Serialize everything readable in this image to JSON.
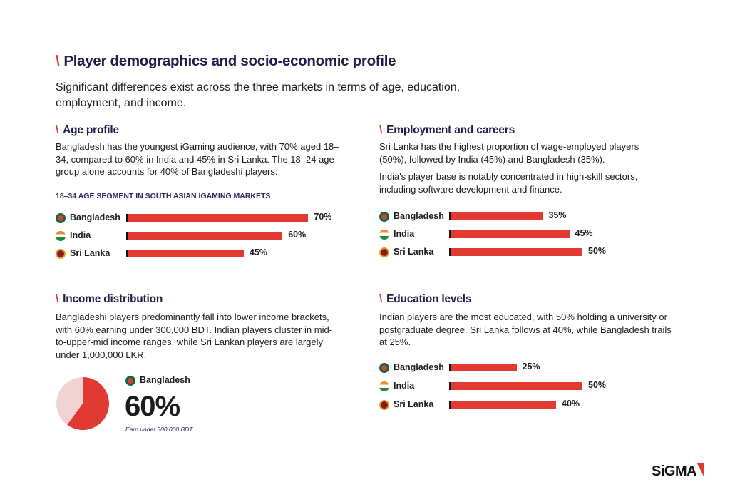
{
  "title": "Player demographics and socio-economic profile",
  "intro": "Significant differences exist across the three markets in terms of age, education, employment, and income.",
  "slash": "\\",
  "colors": {
    "accent": "#e03a33",
    "heading": "#1f1d4a",
    "pie_light": "#f2d3d4"
  },
  "age": {
    "heading": "Age profile",
    "text": "Bangladesh has the youngest iGaming audience, with 70% aged 18–34, compared to 60% in India and 45% in Sri Lanka. The 18–24 age group alone accounts for 40% of Bangladeshi players."
  },
  "employment": {
    "heading": "Employment and careers",
    "text1": "Sri Lanka has the highest proportion of wage-employed players (50%), followed by India (45%) and Bangladesh (35%).",
    "text2": "India's player base is notably concentrated in high-skill sectors, including software development and finance."
  },
  "income": {
    "heading": "Income distribution",
    "text": "Bangladeshi players predominantly fall into lower income brackets, with 60% earning under 300,000 BDT. Indian players cluster in mid-to-upper-mid income ranges, while Sri Lankan players are largely under 1,000,000 LKR.",
    "country": "Bangladesh",
    "big": "60%",
    "caption": "Earn under 300,000 BDT"
  },
  "education": {
    "heading": "Education levels",
    "text": "Indian players are the most educated, with 50% holding a university or postgraduate degree. Sri Lanka follows at 40%, while Bangladesh trails at 25%."
  },
  "logo": "SiGMA",
  "chart_data": [
    {
      "type": "bar",
      "orientation": "horizontal",
      "title": "18–34 AGE SEGMENT IN SOUTH ASIAN IGAMING MARKETS",
      "categories": [
        "Bangladesh",
        "India",
        "Sri Lanka"
      ],
      "values": [
        70,
        60,
        45
      ],
      "labels": [
        "70%",
        "60%",
        "45%"
      ]
    },
    {
      "type": "bar",
      "orientation": "horizontal",
      "title": "",
      "categories": [
        "Bangladesh",
        "India",
        "Sri Lanka"
      ],
      "values": [
        35,
        45,
        50
      ],
      "labels": [
        "35%",
        "45%",
        "50%"
      ]
    },
    {
      "type": "pie",
      "title": "",
      "categories": [
        "Earn under 300,000 BDT",
        "Other"
      ],
      "values": [
        60,
        40
      ]
    },
    {
      "type": "bar",
      "orientation": "horizontal",
      "title": "",
      "categories": [
        "Bangladesh",
        "India",
        "Sri Lanka"
      ],
      "values": [
        25,
        50,
        40
      ],
      "labels": [
        "25%",
        "50%",
        "40%"
      ]
    }
  ]
}
